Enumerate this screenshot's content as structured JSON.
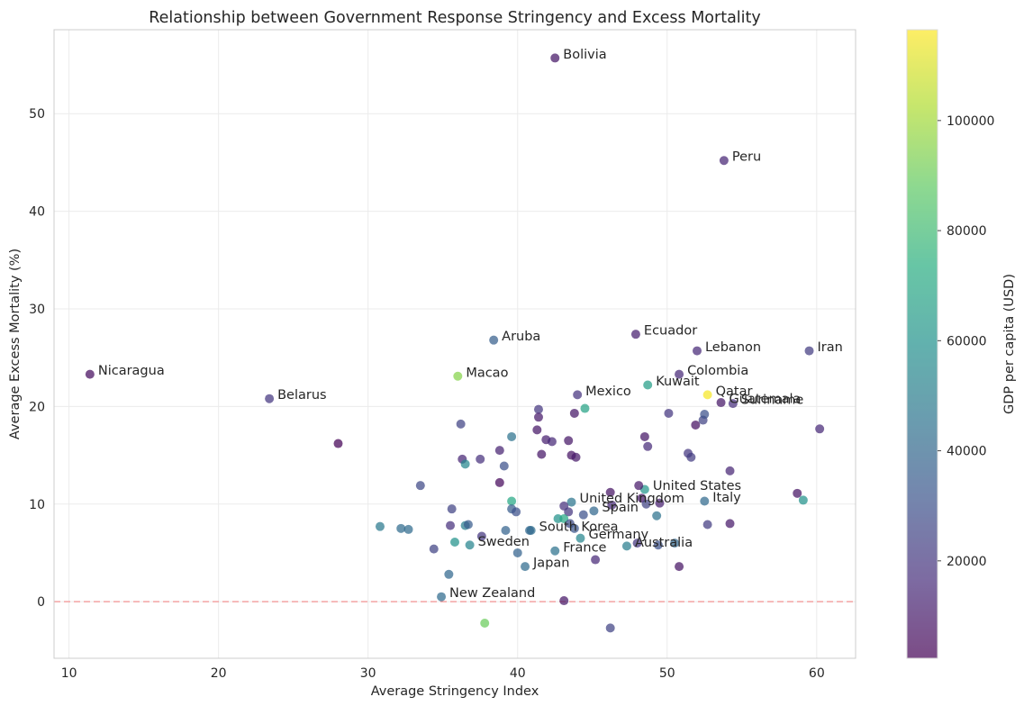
{
  "chart_data": {
    "type": "scatter",
    "title": "Relationship between Government Response Stringency and Excess Mortality",
    "xlabel": "Average Stringency Index",
    "ylabel": "Average Excess Mortality (%)",
    "xlim": [
      9,
      62.6
    ],
    "ylim": [
      -5.8,
      58.6
    ],
    "x_ticks": [
      10,
      20,
      30,
      40,
      50,
      60
    ],
    "y_ticks": [
      0,
      10,
      20,
      30,
      40,
      50
    ],
    "grid": true,
    "reference_line": {
      "y": 0,
      "color": "#f4a3a3",
      "style": "dashed"
    },
    "colorbar": {
      "label": "GDP per capita (USD)",
      "range": [
        2300,
        116500
      ],
      "ticks": [
        20000,
        40000,
        60000,
        80000,
        100000
      ],
      "colormap": "viridis"
    },
    "points": [
      {
        "x": 42.5,
        "y": 55.7,
        "gdp": 9000,
        "label": "Bolivia"
      },
      {
        "x": 53.8,
        "y": 45.2,
        "gdp": 14000,
        "label": "Peru"
      },
      {
        "x": 11.4,
        "y": 23.3,
        "gdp": 6000,
        "label": "Nicaragua"
      },
      {
        "x": 23.4,
        "y": 20.8,
        "gdp": 20000,
        "label": "Belarus"
      },
      {
        "x": 38.4,
        "y": 26.8,
        "gdp": 36000,
        "label": "Aruba"
      },
      {
        "x": 36.0,
        "y": 23.1,
        "gdp": 95000,
        "label": "Macao"
      },
      {
        "x": 47.9,
        "y": 27.4,
        "gdp": 12000,
        "label": "Ecuador"
      },
      {
        "x": 52.0,
        "y": 25.7,
        "gdp": 15000,
        "label": "Lebanon"
      },
      {
        "x": 59.5,
        "y": 25.7,
        "gdp": 22000,
        "label": "Iran"
      },
      {
        "x": 50.8,
        "y": 23.3,
        "gdp": 15000,
        "label": "Colombia"
      },
      {
        "x": 48.7,
        "y": 22.2,
        "gdp": 65000,
        "label": "Kuwait"
      },
      {
        "x": 44.0,
        "y": 21.2,
        "gdp": 19000,
        "label": "Mexico"
      },
      {
        "x": 52.7,
        "y": 21.2,
        "gdp": 115000,
        "label": "Qatar"
      },
      {
        "x": 53.6,
        "y": 20.4,
        "gdp": 9000,
        "label": "Guatemala"
      },
      {
        "x": 54.4,
        "y": 20.3,
        "gdp": 17000,
        "label": "Suriname"
      },
      {
        "x": 48.5,
        "y": 11.5,
        "gdp": 62000,
        "label": "United States"
      },
      {
        "x": 52.5,
        "y": 10.3,
        "gdp": 41000,
        "label": "Italy"
      },
      {
        "x": 43.6,
        "y": 10.2,
        "gdp": 46000,
        "label": "United Kingdom"
      },
      {
        "x": 45.1,
        "y": 9.3,
        "gdp": 40000,
        "label": "Spain"
      },
      {
        "x": 40.9,
        "y": 7.3,
        "gdp": 43000,
        "label": "South Korea"
      },
      {
        "x": 44.2,
        "y": 6.5,
        "gdp": 54000,
        "label": "Germany"
      },
      {
        "x": 47.3,
        "y": 5.7,
        "gdp": 50000,
        "label": "Australia"
      },
      {
        "x": 36.8,
        "y": 5.8,
        "gdp": 53000,
        "label": "Sweden"
      },
      {
        "x": 42.5,
        "y": 5.2,
        "gdp": 45000,
        "label": "France"
      },
      {
        "x": 40.5,
        "y": 3.6,
        "gdp": 42000,
        "label": "Japan"
      },
      {
        "x": 34.9,
        "y": 0.5,
        "gdp": 42000,
        "label": "New Zealand"
      },
      {
        "x": 28.0,
        "y": 16.2,
        "gdp": 3000,
        "label": ""
      },
      {
        "x": 41.4,
        "y": 19.7,
        "gdp": 20000,
        "label": ""
      },
      {
        "x": 41.4,
        "y": 18.9,
        "gdp": 10000,
        "label": ""
      },
      {
        "x": 36.2,
        "y": 18.2,
        "gdp": 25000,
        "label": ""
      },
      {
        "x": 39.6,
        "y": 16.9,
        "gdp": 45000,
        "label": ""
      },
      {
        "x": 44.5,
        "y": 19.8,
        "gdp": 68000,
        "label": ""
      },
      {
        "x": 43.8,
        "y": 19.3,
        "gdp": 9000,
        "label": ""
      },
      {
        "x": 41.3,
        "y": 17.6,
        "gdp": 9000,
        "label": ""
      },
      {
        "x": 41.9,
        "y": 16.6,
        "gdp": 12000,
        "label": ""
      },
      {
        "x": 42.3,
        "y": 16.4,
        "gdp": 15000,
        "label": ""
      },
      {
        "x": 43.4,
        "y": 16.5,
        "gdp": 9000,
        "label": ""
      },
      {
        "x": 38.8,
        "y": 15.5,
        "gdp": 13000,
        "label": ""
      },
      {
        "x": 41.6,
        "y": 15.1,
        "gdp": 9000,
        "label": ""
      },
      {
        "x": 43.6,
        "y": 15.0,
        "gdp": 8000,
        "label": ""
      },
      {
        "x": 43.9,
        "y": 14.8,
        "gdp": 10000,
        "label": ""
      },
      {
        "x": 36.3,
        "y": 14.6,
        "gdp": 14000,
        "label": ""
      },
      {
        "x": 37.5,
        "y": 14.6,
        "gdp": 18000,
        "label": ""
      },
      {
        "x": 36.5,
        "y": 14.1,
        "gdp": 55000,
        "label": ""
      },
      {
        "x": 39.1,
        "y": 13.9,
        "gdp": 30000,
        "label": ""
      },
      {
        "x": 38.8,
        "y": 12.2,
        "gdp": 5000,
        "label": ""
      },
      {
        "x": 33.5,
        "y": 11.9,
        "gdp": 27000,
        "label": ""
      },
      {
        "x": 48.5,
        "y": 16.9,
        "gdp": 9000,
        "label": ""
      },
      {
        "x": 48.7,
        "y": 15.9,
        "gdp": 16000,
        "label": ""
      },
      {
        "x": 50.1,
        "y": 19.3,
        "gdp": 20000,
        "label": ""
      },
      {
        "x": 51.9,
        "y": 18.1,
        "gdp": 7000,
        "label": ""
      },
      {
        "x": 52.4,
        "y": 18.6,
        "gdp": 25000,
        "label": ""
      },
      {
        "x": 52.5,
        "y": 19.2,
        "gdp": 30000,
        "label": ""
      },
      {
        "x": 51.4,
        "y": 15.2,
        "gdp": 20000,
        "label": ""
      },
      {
        "x": 51.6,
        "y": 14.8,
        "gdp": 22000,
        "label": ""
      },
      {
        "x": 54.2,
        "y": 13.4,
        "gdp": 14000,
        "label": ""
      },
      {
        "x": 60.2,
        "y": 17.7,
        "gdp": 15000,
        "label": ""
      },
      {
        "x": 58.7,
        "y": 11.1,
        "gdp": 8000,
        "label": ""
      },
      {
        "x": 59.1,
        "y": 10.4,
        "gdp": 60000,
        "label": ""
      },
      {
        "x": 48.1,
        "y": 11.9,
        "gdp": 10000,
        "label": ""
      },
      {
        "x": 46.2,
        "y": 11.2,
        "gdp": 8000,
        "label": ""
      },
      {
        "x": 48.3,
        "y": 10.6,
        "gdp": 9000,
        "label": ""
      },
      {
        "x": 48.6,
        "y": 10.0,
        "gdp": 25000,
        "label": ""
      },
      {
        "x": 49.5,
        "y": 10.1,
        "gdp": 12000,
        "label": ""
      },
      {
        "x": 39.6,
        "y": 10.3,
        "gdp": 70000,
        "label": ""
      },
      {
        "x": 39.6,
        "y": 9.5,
        "gdp": 35000,
        "label": ""
      },
      {
        "x": 39.9,
        "y": 9.2,
        "gdp": 30000,
        "label": ""
      },
      {
        "x": 43.1,
        "y": 9.8,
        "gdp": 18000,
        "label": ""
      },
      {
        "x": 43.4,
        "y": 9.2,
        "gdp": 20000,
        "label": ""
      },
      {
        "x": 44.4,
        "y": 8.9,
        "gdp": 30000,
        "label": ""
      },
      {
        "x": 46.3,
        "y": 9.9,
        "gdp": 15000,
        "label": ""
      },
      {
        "x": 42.7,
        "y": 8.5,
        "gdp": 60000,
        "label": ""
      },
      {
        "x": 43.1,
        "y": 8.5,
        "gdp": 70000,
        "label": ""
      },
      {
        "x": 43.5,
        "y": 8.0,
        "gdp": 28000,
        "label": ""
      },
      {
        "x": 43.8,
        "y": 7.5,
        "gdp": 32000,
        "label": ""
      },
      {
        "x": 49.3,
        "y": 8.8,
        "gdp": 45000,
        "label": ""
      },
      {
        "x": 35.6,
        "y": 9.5,
        "gdp": 25000,
        "label": ""
      },
      {
        "x": 35.5,
        "y": 7.8,
        "gdp": 18000,
        "label": ""
      },
      {
        "x": 36.5,
        "y": 7.8,
        "gdp": 50000,
        "label": ""
      },
      {
        "x": 36.7,
        "y": 7.9,
        "gdp": 35000,
        "label": ""
      },
      {
        "x": 39.2,
        "y": 7.3,
        "gdp": 38000,
        "label": ""
      },
      {
        "x": 40.8,
        "y": 7.3,
        "gdp": 40000,
        "label": ""
      },
      {
        "x": 37.6,
        "y": 6.7,
        "gdp": 20000,
        "label": ""
      },
      {
        "x": 30.8,
        "y": 7.7,
        "gdp": 48000,
        "label": ""
      },
      {
        "x": 32.2,
        "y": 7.5,
        "gdp": 42000,
        "label": ""
      },
      {
        "x": 32.7,
        "y": 7.4,
        "gdp": 42000,
        "label": ""
      },
      {
        "x": 35.8,
        "y": 6.1,
        "gdp": 60000,
        "label": ""
      },
      {
        "x": 34.4,
        "y": 5.4,
        "gdp": 25000,
        "label": ""
      },
      {
        "x": 40.0,
        "y": 5.0,
        "gdp": 38000,
        "label": ""
      },
      {
        "x": 52.7,
        "y": 7.9,
        "gdp": 22000,
        "label": ""
      },
      {
        "x": 54.2,
        "y": 8.0,
        "gdp": 10000,
        "label": ""
      },
      {
        "x": 49.4,
        "y": 5.8,
        "gdp": 30000,
        "label": ""
      },
      {
        "x": 50.5,
        "y": 6.0,
        "gdp": 40000,
        "label": ""
      },
      {
        "x": 48.0,
        "y": 6.0,
        "gdp": 20000,
        "label": ""
      },
      {
        "x": 45.2,
        "y": 4.3,
        "gdp": 15000,
        "label": ""
      },
      {
        "x": 50.8,
        "y": 3.6,
        "gdp": 8000,
        "label": ""
      },
      {
        "x": 35.4,
        "y": 2.8,
        "gdp": 40000,
        "label": ""
      },
      {
        "x": 43.1,
        "y": 0.1,
        "gdp": 9000,
        "label": ""
      },
      {
        "x": 37.8,
        "y": -2.2,
        "gdp": 90000,
        "label": ""
      },
      {
        "x": 46.2,
        "y": -2.7,
        "gdp": 25000,
        "label": ""
      }
    ]
  }
}
